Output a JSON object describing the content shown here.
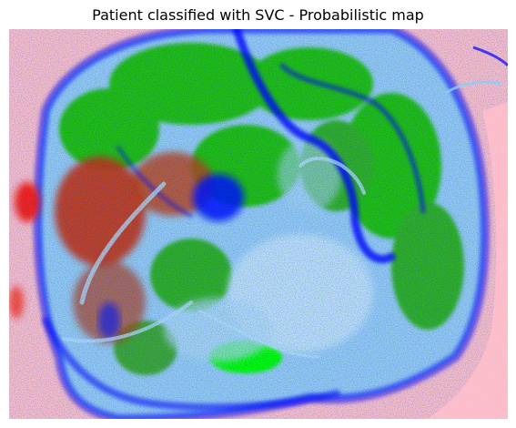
{
  "figure": {
    "title": "Patient classified with SVC - Probabilistic map"
  },
  "map": {
    "palette": {
      "background": "#ffc0cb",
      "light_blue": "#87cefa",
      "blue": "#0000ff",
      "green": "#00e000",
      "red": "#e02000",
      "off_white": "#f0f0f0"
    }
  }
}
